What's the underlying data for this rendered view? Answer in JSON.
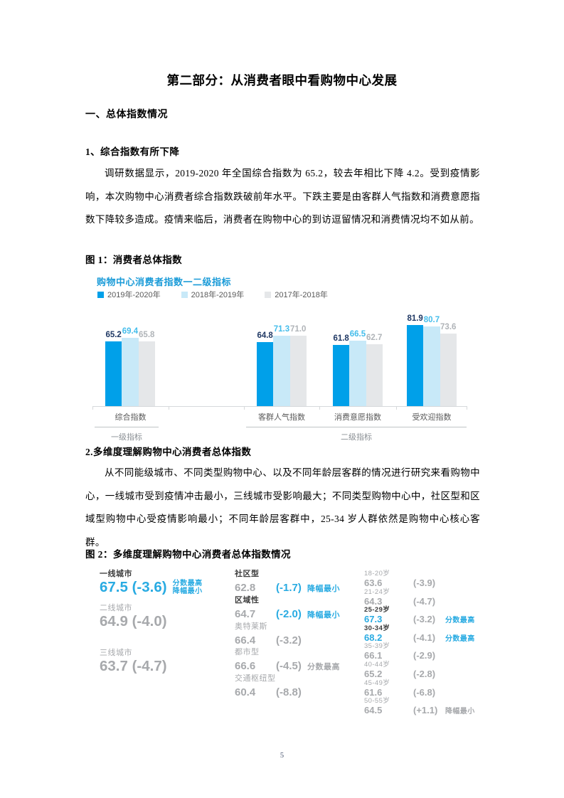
{
  "doc": {
    "title": "第二部分：从消费者眼中看购物中心发展",
    "section1_heading": "一、总体指数情况",
    "sub1_heading": "1、综合指数有所下降",
    "para1": "调研数据显示，2019-2020 年全国综合指数为 65.2，较去年相比下降 4.2。受到疫情影响，本次购物中心消费者综合指数跌破前年水平。下跌主要是由客群人气指数和消费意愿指数下降较多造成。疫情来临后，消费者在购物中心的到访逗留情况和消费情况均不如从前。",
    "fig1_caption": "图 1：消费者总体指数",
    "sub2_heading": "2.多维度理解购物中心消费者总体指数",
    "para2": "从不同能级城市、不同类型购物中心、以及不同年龄层客群的情况进行研究来看购物中心，一线城市受到疫情冲击最小，三线城市受影响最大；不同类型购物中心中，社区型和区域型购物中心受疫情影响最小；不同年龄层客群中，25-34 岁人群依然是购物中心核心客群。",
    "fig2_caption": "图 2：多维度理解购物中心消费者总体指数情况",
    "page_number": "5"
  },
  "colors": {
    "accent_blue": "#29abe2",
    "bar_blue": "#00a0e9",
    "bar_light_blue": "#c8e9f8",
    "bar_gray": "#e5e7e9",
    "label_navy": "#1f3864",
    "label_sky": "#44bdeb",
    "label_gray": "#b0b4b8",
    "chart_title_blue": "#1a9bd8"
  },
  "chart_data": {
    "type": "bar",
    "title": "购物中心消费者指数一二级指标",
    "categories": [
      "综合指数",
      "客群人气指数",
      "消费意愿指数",
      "受欢迎指数"
    ],
    "series": [
      {
        "name": "2019年-2020年",
        "color": "#00a0e9",
        "label_color": "#1f3864",
        "values": [
          65.2,
          64.8,
          61.8,
          81.9
        ]
      },
      {
        "name": "2018年-2019年",
        "color": "#c8e9f8",
        "label_color": "#44bdeb",
        "values": [
          69.4,
          71.3,
          66.5,
          80.7
        ]
      },
      {
        "name": "2017年-2018年",
        "color": "#e5e7e9",
        "label_color": "#b0b4b8",
        "values": [
          65.8,
          71.0,
          62.7,
          73.6
        ]
      }
    ],
    "tiers": [
      {
        "label": "一级指标",
        "covers": [
          "综合指数"
        ]
      },
      {
        "label": "二级指标",
        "covers": [
          "客群人气指数",
          "消费意愿指数",
          "受欢迎指数"
        ]
      }
    ],
    "ylim": [
      0,
      90
    ],
    "grid": false,
    "legend_position": "top-left",
    "data_labels": true
  },
  "fig2": {
    "city_items": [
      {
        "label": "一线城市",
        "label_dark": true,
        "value": "67.5 (-3.6)",
        "value_blue": true,
        "tags": [
          "分数最高",
          "降幅最小"
        ]
      },
      {
        "label": "二线城市",
        "label_dark": false,
        "value": "64.9 (-4.0)",
        "value_blue": false,
        "tags": []
      },
      {
        "label": "三线城市",
        "label_dark": false,
        "value": "63.7 (-4.7)",
        "value_blue": false,
        "tags": []
      }
    ],
    "type_items": [
      {
        "label": "社区型",
        "label_dark": true,
        "value": "62.8",
        "change": "(-1.7)",
        "change_blue": true,
        "tag": "降幅最小",
        "tag_blue": true
      },
      {
        "label": "区域性",
        "label_dark": true,
        "value": "64.7",
        "change": "(-2.0)",
        "change_blue": true,
        "tag": "降幅最小",
        "tag_blue": true
      },
      {
        "label": "奥特莱斯",
        "label_dark": false,
        "value": "66.4",
        "change": "(-3.2)",
        "change_blue": false,
        "tag": "",
        "tag_blue": false
      },
      {
        "label": "都市型",
        "label_dark": false,
        "value": "66.6",
        "change": "(-4.5)",
        "change_blue": false,
        "tag": "分数最高",
        "tag_blue": false
      },
      {
        "label": "交通枢纽型",
        "label_dark": false,
        "value": "60.4",
        "change": "(-8.8)",
        "change_blue": false,
        "tag": "",
        "tag_blue": false
      }
    ],
    "age_items": [
      {
        "label": "18-20岁",
        "label_dark": false,
        "value": "63.6",
        "value_blue": false,
        "change": "(-3.9)",
        "tag": "",
        "tag_blue": false
      },
      {
        "label": "21-24岁",
        "label_dark": false,
        "value": "64.3",
        "value_blue": false,
        "change": "(-4.7)",
        "tag": "",
        "tag_blue": false
      },
      {
        "label": "25-29岁",
        "label_dark": true,
        "value": "67.3",
        "value_blue": true,
        "change": "(-3.2)",
        "tag": "分数最高",
        "tag_blue": true
      },
      {
        "label": "30-34岁",
        "label_dark": true,
        "value": "68.2",
        "value_blue": true,
        "change": "(-4.1)",
        "tag": "分数最高",
        "tag_blue": true
      },
      {
        "label": "35-39岁",
        "label_dark": false,
        "value": "66.1",
        "value_blue": false,
        "change": "(-2.9)",
        "tag": "",
        "tag_blue": false
      },
      {
        "label": "40-44岁",
        "label_dark": false,
        "value": "65.2",
        "value_blue": false,
        "change": "(-2.8)",
        "tag": "",
        "tag_blue": false
      },
      {
        "label": "45-49岁",
        "label_dark": false,
        "value": "61.6",
        "value_blue": false,
        "change": "(-6.8)",
        "tag": "",
        "tag_blue": false
      },
      {
        "label": "50-55岁",
        "label_dark": false,
        "value": "64.5",
        "value_blue": false,
        "change": "(+1.1)",
        "tag": "降幅最小",
        "tag_blue": false
      }
    ]
  }
}
